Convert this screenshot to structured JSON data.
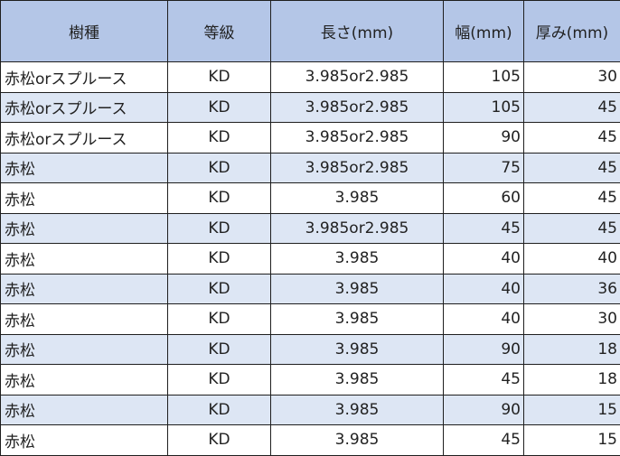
{
  "table": {
    "headers": [
      "樹種",
      "等級",
      "長さ(mm)",
      "幅(mm)",
      "厚み(mm)"
    ],
    "rows": [
      {
        "species": "赤松orスプルース",
        "grade": "KD",
        "length": "3.985or2.985",
        "width": "105",
        "thickness": "30"
      },
      {
        "species": "赤松orスプルース",
        "grade": "KD",
        "length": "3.985or2.985",
        "width": "105",
        "thickness": "45"
      },
      {
        "species": "赤松orスプルース",
        "grade": "KD",
        "length": "3.985or2.985",
        "width": "90",
        "thickness": "45"
      },
      {
        "species": "赤松",
        "grade": "KD",
        "length": "3.985or2.985",
        "width": "75",
        "thickness": "45"
      },
      {
        "species": "赤松",
        "grade": "KD",
        "length": "3.985",
        "width": "60",
        "thickness": "45"
      },
      {
        "species": "赤松",
        "grade": "KD",
        "length": "3.985or2.985",
        "width": "45",
        "thickness": "45"
      },
      {
        "species": "赤松",
        "grade": "KD",
        "length": "3.985",
        "width": "40",
        "thickness": "40"
      },
      {
        "species": "赤松",
        "grade": "KD",
        "length": "3.985",
        "width": "40",
        "thickness": "36"
      },
      {
        "species": "赤松",
        "grade": "KD",
        "length": "3.985",
        "width": "40",
        "thickness": "30"
      },
      {
        "species": "赤松",
        "grade": "KD",
        "length": "3.985",
        "width": "90",
        "thickness": "18"
      },
      {
        "species": "赤松",
        "grade": "KD",
        "length": "3.985",
        "width": "45",
        "thickness": "18"
      },
      {
        "species": "赤松",
        "grade": "KD",
        "length": "3.985",
        "width": "90",
        "thickness": "15"
      },
      {
        "species": "赤松",
        "grade": "KD",
        "length": "3.985",
        "width": "45",
        "thickness": "15"
      }
    ]
  },
  "colors": {
    "header_bg": "#b4c6e7",
    "band_bg": "#dde6f4",
    "row_bg": "#ffffff",
    "border": "#1f1f1f"
  }
}
